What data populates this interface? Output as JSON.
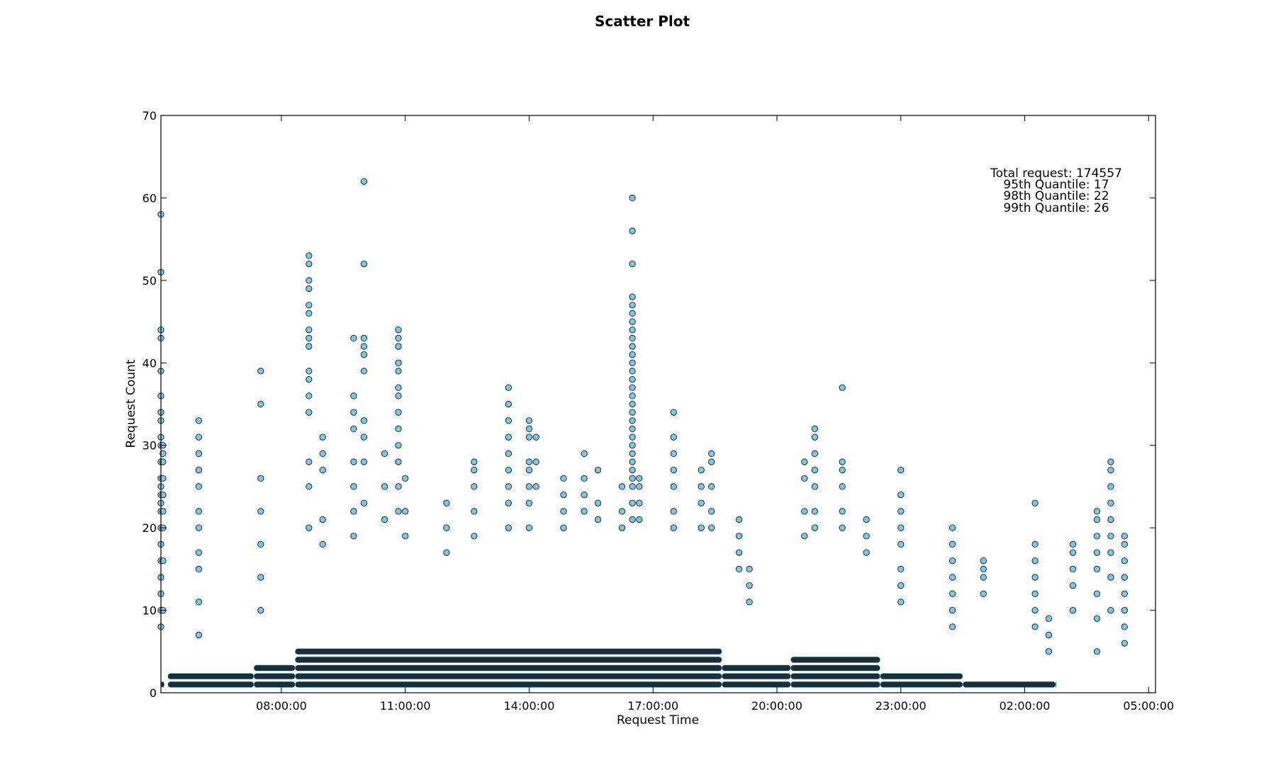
{
  "chart_data": {
    "type": "scatter",
    "title": "Scatter Plot",
    "xlabel": "Request Time",
    "ylabel": "Request Count",
    "xlim": [
      "05:05:00",
      "05:10:00 (next day)"
    ],
    "ylim": [
      0,
      70
    ],
    "y_ticks": [
      0,
      10,
      20,
      30,
      40,
      50,
      60,
      70
    ],
    "x_ticks": [
      {
        "time": "08:00:00",
        "label": "08:00:00"
      },
      {
        "time": "11:00:00",
        "label": "11:00:00"
      },
      {
        "time": "14:00:00",
        "label": "14:00:00"
      },
      {
        "time": "17:00:00",
        "label": "17:00:00"
      },
      {
        "time": "20:00:00",
        "label": "20:00:00"
      },
      {
        "time": "23:00:00",
        "label": "23:00:00"
      },
      {
        "time": "02:00:00",
        "label": "02:00:00"
      },
      {
        "time": "05:00:00",
        "label": "05:00:00"
      }
    ],
    "marker_color": "#7ec8e3",
    "marker_edge_color": "#000000",
    "grid": false,
    "annotation": [
      "Total request: 174557",
      "95th Quantile: 17",
      "98th Quantile: 22",
      "99th Quantile: 26"
    ],
    "series": [
      {
        "points": [
          [
            "06:00:00",
            33
          ],
          [
            "06:00:00",
            31
          ],
          [
            "06:00:00",
            29
          ],
          [
            "06:00:00",
            27
          ],
          [
            "06:00:00",
            25
          ],
          [
            "06:00:00",
            22
          ],
          [
            "06:00:00",
            20
          ],
          [
            "06:00:00",
            17
          ],
          [
            "06:00:00",
            15
          ],
          [
            "06:00:00",
            11
          ],
          [
            "06:00:00",
            7
          ],
          [
            "07:30:00",
            39
          ],
          [
            "07:30:00",
            35
          ],
          [
            "07:30:00",
            26
          ],
          [
            "07:30:00",
            22
          ],
          [
            "07:30:00",
            18
          ],
          [
            "07:30:00",
            14
          ],
          [
            "07:30:00",
            10
          ],
          [
            "08:40:00",
            53
          ],
          [
            "08:40:00",
            52
          ],
          [
            "08:40:00",
            50
          ],
          [
            "08:40:00",
            49
          ],
          [
            "08:40:00",
            47
          ],
          [
            "08:40:00",
            46
          ],
          [
            "08:40:00",
            44
          ],
          [
            "08:40:00",
            43
          ],
          [
            "08:40:00",
            42
          ],
          [
            "08:40:00",
            39
          ],
          [
            "08:40:00",
            38
          ],
          [
            "08:40:00",
            36
          ],
          [
            "08:40:00",
            34
          ],
          [
            "08:40:00",
            28
          ],
          [
            "08:40:00",
            25
          ],
          [
            "08:40:00",
            20
          ],
          [
            "09:00:00",
            31
          ],
          [
            "09:00:00",
            29
          ],
          [
            "09:00:00",
            27
          ],
          [
            "09:00:00",
            21
          ],
          [
            "09:00:00",
            18
          ],
          [
            "09:45:00",
            43
          ],
          [
            "09:45:00",
            36
          ],
          [
            "09:45:00",
            34
          ],
          [
            "09:45:00",
            32
          ],
          [
            "09:45:00",
            28
          ],
          [
            "09:45:00",
            25
          ],
          [
            "09:45:00",
            22
          ],
          [
            "09:45:00",
            19
          ],
          [
            "10:00:00",
            62
          ],
          [
            "10:00:00",
            52
          ],
          [
            "10:00:00",
            43
          ],
          [
            "10:00:00",
            42
          ],
          [
            "10:00:00",
            41
          ],
          [
            "10:00:00",
            39
          ],
          [
            "10:00:00",
            33
          ],
          [
            "10:00:00",
            31
          ],
          [
            "10:00:00",
            28
          ],
          [
            "10:00:00",
            23
          ],
          [
            "10:30:00",
            29
          ],
          [
            "10:30:00",
            25
          ],
          [
            "10:30:00",
            21
          ],
          [
            "10:50:00",
            44
          ],
          [
            "10:50:00",
            43
          ],
          [
            "10:50:00",
            42
          ],
          [
            "10:50:00",
            40
          ],
          [
            "10:50:00",
            39
          ],
          [
            "10:50:00",
            37
          ],
          [
            "10:50:00",
            36
          ],
          [
            "10:50:00",
            34
          ],
          [
            "10:50:00",
            32
          ],
          [
            "10:50:00",
            30
          ],
          [
            "10:50:00",
            28
          ],
          [
            "10:50:00",
            25
          ],
          [
            "10:50:00",
            22
          ],
          [
            "11:00:00",
            26
          ],
          [
            "11:00:00",
            22
          ],
          [
            "11:00:00",
            19
          ],
          [
            "12:00:00",
            23
          ],
          [
            "12:00:00",
            20
          ],
          [
            "12:00:00",
            17
          ],
          [
            "12:40:00",
            28
          ],
          [
            "12:40:00",
            27
          ],
          [
            "12:40:00",
            25
          ],
          [
            "12:40:00",
            22
          ],
          [
            "12:40:00",
            19
          ],
          [
            "13:30:00",
            37
          ],
          [
            "13:30:00",
            35
          ],
          [
            "13:30:00",
            33
          ],
          [
            "13:30:00",
            31
          ],
          [
            "13:30:00",
            29
          ],
          [
            "13:30:00",
            27
          ],
          [
            "13:30:00",
            25
          ],
          [
            "13:30:00",
            23
          ],
          [
            "13:30:00",
            20
          ],
          [
            "14:00:00",
            33
          ],
          [
            "14:00:00",
            32
          ],
          [
            "14:00:00",
            31
          ],
          [
            "14:00:00",
            28
          ],
          [
            "14:00:00",
            27
          ],
          [
            "14:00:00",
            25
          ],
          [
            "14:00:00",
            23
          ],
          [
            "14:00:00",
            20
          ],
          [
            "14:10:00",
            31
          ],
          [
            "14:10:00",
            28
          ],
          [
            "14:10:00",
            25
          ],
          [
            "14:50:00",
            26
          ],
          [
            "14:50:00",
            24
          ],
          [
            "14:50:00",
            22
          ],
          [
            "14:50:00",
            20
          ],
          [
            "15:20:00",
            29
          ],
          [
            "15:20:00",
            26
          ],
          [
            "15:20:00",
            24
          ],
          [
            "15:20:00",
            22
          ],
          [
            "15:40:00",
            27
          ],
          [
            "15:40:00",
            23
          ],
          [
            "15:40:00",
            21
          ],
          [
            "16:15:00",
            25
          ],
          [
            "16:15:00",
            22
          ],
          [
            "16:15:00",
            20
          ],
          [
            "16:30:00",
            60
          ],
          [
            "16:30:00",
            56
          ],
          [
            "16:30:00",
            52
          ],
          [
            "16:30:00",
            48
          ],
          [
            "16:30:00",
            47
          ],
          [
            "16:30:00",
            46
          ],
          [
            "16:30:00",
            45
          ],
          [
            "16:30:00",
            44
          ],
          [
            "16:30:00",
            43
          ],
          [
            "16:30:00",
            42
          ],
          [
            "16:30:00",
            41
          ],
          [
            "16:30:00",
            40
          ],
          [
            "16:30:00",
            39
          ],
          [
            "16:30:00",
            38
          ],
          [
            "16:30:00",
            37
          ],
          [
            "16:30:00",
            36
          ],
          [
            "16:30:00",
            35
          ],
          [
            "16:30:00",
            34
          ],
          [
            "16:30:00",
            33
          ],
          [
            "16:30:00",
            32
          ],
          [
            "16:30:00",
            31
          ],
          [
            "16:30:00",
            30
          ],
          [
            "16:30:00",
            29
          ],
          [
            "16:30:00",
            28
          ],
          [
            "16:30:00",
            27
          ],
          [
            "16:30:00",
            26
          ],
          [
            "16:30:00",
            25
          ],
          [
            "16:30:00",
            23
          ],
          [
            "16:30:00",
            21
          ],
          [
            "16:40:00",
            26
          ],
          [
            "16:40:00",
            25
          ],
          [
            "16:40:00",
            23
          ],
          [
            "16:40:00",
            21
          ],
          [
            "17:30:00",
            34
          ],
          [
            "17:30:00",
            31
          ],
          [
            "17:30:00",
            29
          ],
          [
            "17:30:00",
            27
          ],
          [
            "17:30:00",
            25
          ],
          [
            "17:30:00",
            22
          ],
          [
            "17:30:00",
            20
          ],
          [
            "18:10:00",
            27
          ],
          [
            "18:10:00",
            25
          ],
          [
            "18:10:00",
            23
          ],
          [
            "18:10:00",
            20
          ],
          [
            "18:25:00",
            29
          ],
          [
            "18:25:00",
            28
          ],
          [
            "18:25:00",
            25
          ],
          [
            "18:25:00",
            22
          ],
          [
            "18:25:00",
            20
          ],
          [
            "19:05:00",
            21
          ],
          [
            "19:05:00",
            19
          ],
          [
            "19:05:00",
            17
          ],
          [
            "19:05:00",
            15
          ],
          [
            "19:20:00",
            15
          ],
          [
            "19:20:00",
            13
          ],
          [
            "19:20:00",
            11
          ],
          [
            "20:40:00",
            28
          ],
          [
            "20:40:00",
            26
          ],
          [
            "20:40:00",
            22
          ],
          [
            "20:40:00",
            19
          ],
          [
            "20:55:00",
            32
          ],
          [
            "20:55:00",
            31
          ],
          [
            "20:55:00",
            29
          ],
          [
            "20:55:00",
            27
          ],
          [
            "20:55:00",
            25
          ],
          [
            "20:55:00",
            22
          ],
          [
            "20:55:00",
            20
          ],
          [
            "21:35:00",
            37
          ],
          [
            "21:35:00",
            28
          ],
          [
            "21:35:00",
            27
          ],
          [
            "21:35:00",
            25
          ],
          [
            "21:35:00",
            22
          ],
          [
            "21:35:00",
            20
          ],
          [
            "22:10:00",
            21
          ],
          [
            "22:10:00",
            19
          ],
          [
            "22:10:00",
            17
          ],
          [
            "23:00:00",
            27
          ],
          [
            "23:00:00",
            24
          ],
          [
            "23:00:00",
            22
          ],
          [
            "23:00:00",
            20
          ],
          [
            "23:00:00",
            18
          ],
          [
            "23:00:00",
            15
          ],
          [
            "23:00:00",
            13
          ],
          [
            "23:00:00",
            11
          ],
          [
            "00:15:00",
            20
          ],
          [
            "00:15:00",
            18
          ],
          [
            "00:15:00",
            16
          ],
          [
            "00:15:00",
            14
          ],
          [
            "00:15:00",
            12
          ],
          [
            "00:15:00",
            10
          ],
          [
            "00:15:00",
            8
          ],
          [
            "01:00:00",
            16
          ],
          [
            "01:00:00",
            15
          ],
          [
            "01:00:00",
            14
          ],
          [
            "01:00:00",
            12
          ],
          [
            "02:15:00",
            23
          ],
          [
            "02:15:00",
            18
          ],
          [
            "02:15:00",
            16
          ],
          [
            "02:15:00",
            14
          ],
          [
            "02:15:00",
            12
          ],
          [
            "02:15:00",
            10
          ],
          [
            "02:15:00",
            8
          ],
          [
            "02:35:00",
            9
          ],
          [
            "02:35:00",
            7
          ],
          [
            "02:35:00",
            5
          ],
          [
            "03:10:00",
            18
          ],
          [
            "03:10:00",
            17
          ],
          [
            "03:10:00",
            15
          ],
          [
            "03:10:00",
            13
          ],
          [
            "03:10:00",
            10
          ],
          [
            "03:45:00",
            22
          ],
          [
            "03:45:00",
            21
          ],
          [
            "03:45:00",
            19
          ],
          [
            "03:45:00",
            17
          ],
          [
            "03:45:00",
            15
          ],
          [
            "03:45:00",
            12
          ],
          [
            "03:45:00",
            9
          ],
          [
            "03:45:00",
            5
          ],
          [
            "04:05:00",
            28
          ],
          [
            "04:05:00",
            27
          ],
          [
            "04:05:00",
            25
          ],
          [
            "04:05:00",
            23
          ],
          [
            "04:05:00",
            21
          ],
          [
            "04:05:00",
            19
          ],
          [
            "04:05:00",
            17
          ],
          [
            "04:05:00",
            14
          ],
          [
            "04:05:00",
            10
          ],
          [
            "04:25:00",
            19
          ],
          [
            "04:25:00",
            18
          ],
          [
            "04:25:00",
            16
          ],
          [
            "04:25:00",
            14
          ],
          [
            "04:25:00",
            12
          ],
          [
            "04:25:00",
            10
          ],
          [
            "04:25:00",
            8
          ],
          [
            "04:25:00",
            6
          ],
          [
            "05:05:00",
            58
          ],
          [
            "05:05:00",
            51
          ],
          [
            "05:05:00",
            44
          ],
          [
            "05:05:00",
            43
          ],
          [
            "05:05:00",
            39
          ],
          [
            "05:05:00",
            36
          ],
          [
            "05:05:00",
            34
          ],
          [
            "05:05:00",
            33
          ],
          [
            "05:05:00",
            31
          ],
          [
            "05:05:00",
            30
          ],
          [
            "05:05:00",
            28
          ],
          [
            "05:05:00",
            26
          ],
          [
            "05:05:00",
            25
          ],
          [
            "05:05:00",
            24
          ],
          [
            "05:05:00",
            23
          ],
          [
            "05:05:00",
            22
          ],
          [
            "05:05:00",
            20
          ],
          [
            "05:05:00",
            18
          ],
          [
            "05:05:00",
            16
          ],
          [
            "05:05:00",
            14
          ],
          [
            "05:05:00",
            12
          ],
          [
            "05:05:00",
            10
          ],
          [
            "05:05:00",
            8
          ],
          [
            "05:08:00",
            30
          ],
          [
            "05:08:00",
            29
          ],
          [
            "05:08:00",
            28
          ],
          [
            "05:08:00",
            26
          ],
          [
            "05:08:00",
            24
          ],
          [
            "05:08:00",
            22
          ],
          [
            "05:08:00",
            20
          ],
          [
            "05:08:00",
            16
          ],
          [
            "05:08:00",
            10
          ]
        ]
      }
    ]
  }
}
